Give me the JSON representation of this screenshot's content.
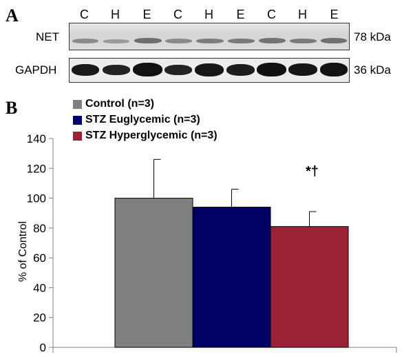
{
  "panel_a": {
    "letter": "A",
    "lanes": [
      "C",
      "H",
      "E",
      "C",
      "H",
      "E",
      "C",
      "H",
      "E"
    ],
    "rows": [
      {
        "label": "NET",
        "size": "78 kDa"
      },
      {
        "label": "GAPDH",
        "size": "36 kDa"
      }
    ]
  },
  "panel_b": {
    "letter": "B"
  },
  "chart_data": {
    "type": "bar",
    "categories": [
      "Control (n=3)",
      "STZ Euglycemic (n=3)",
      "STZ Hyperglycemic (n=3)"
    ],
    "series": [
      {
        "name": "Control (n=3)",
        "value": 100,
        "error": 26,
        "color": "#808080"
      },
      {
        "name": "STZ Euglycemic (n=3)",
        "value": 94,
        "error": 12,
        "color": "#000066"
      },
      {
        "name": "STZ Hyperglycemic (n=3)",
        "value": 81,
        "error": 10,
        "color": "#9B2335"
      }
    ],
    "ylabel": "% of Control",
    "ylim": [
      0,
      140
    ],
    "yticks": [
      "0",
      "20",
      "40",
      "60",
      "80",
      "100",
      "120",
      "140"
    ],
    "annotation": "*†",
    "legend_position": "top-left",
    "grid": false
  }
}
